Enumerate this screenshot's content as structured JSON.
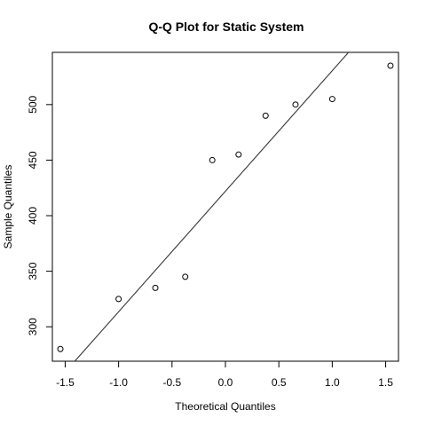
{
  "chart_data": {
    "type": "scatter",
    "title": "Q-Q Plot for Static System",
    "xlabel": "Theoretical Quantiles",
    "ylabel": "Sample Quantiles",
    "xlim": [
      -1.62,
      1.62
    ],
    "ylim": [
      269,
      547
    ],
    "x_ticks": [
      -1.5,
      -1.0,
      -0.5,
      0.0,
      0.5,
      1.0,
      1.5
    ],
    "x_tick_labels": [
      "-1.5",
      "-1.0",
      "-0.5",
      "0.0",
      "0.5",
      "1.0",
      "1.5"
    ],
    "y_ticks": [
      300,
      350,
      400,
      450,
      500
    ],
    "y_tick_labels": [
      "300",
      "350",
      "400",
      "450",
      "500"
    ],
    "grid": false,
    "points": [
      {
        "x": -1.545,
        "y": 280
      },
      {
        "x": -1.0,
        "y": 325
      },
      {
        "x": -0.656,
        "y": 335
      },
      {
        "x": -0.376,
        "y": 345
      },
      {
        "x": -0.123,
        "y": 450
      },
      {
        "x": 0.123,
        "y": 455
      },
      {
        "x": 0.376,
        "y": 490
      },
      {
        "x": 0.656,
        "y": 500
      },
      {
        "x": 1.0,
        "y": 505
      },
      {
        "x": 1.545,
        "y": 535
      }
    ],
    "reference_line": {
      "intercept": 422,
      "slope": 108.5
    },
    "colors": {
      "points": "#000000",
      "line": "#333333",
      "frame": "#000000"
    }
  }
}
